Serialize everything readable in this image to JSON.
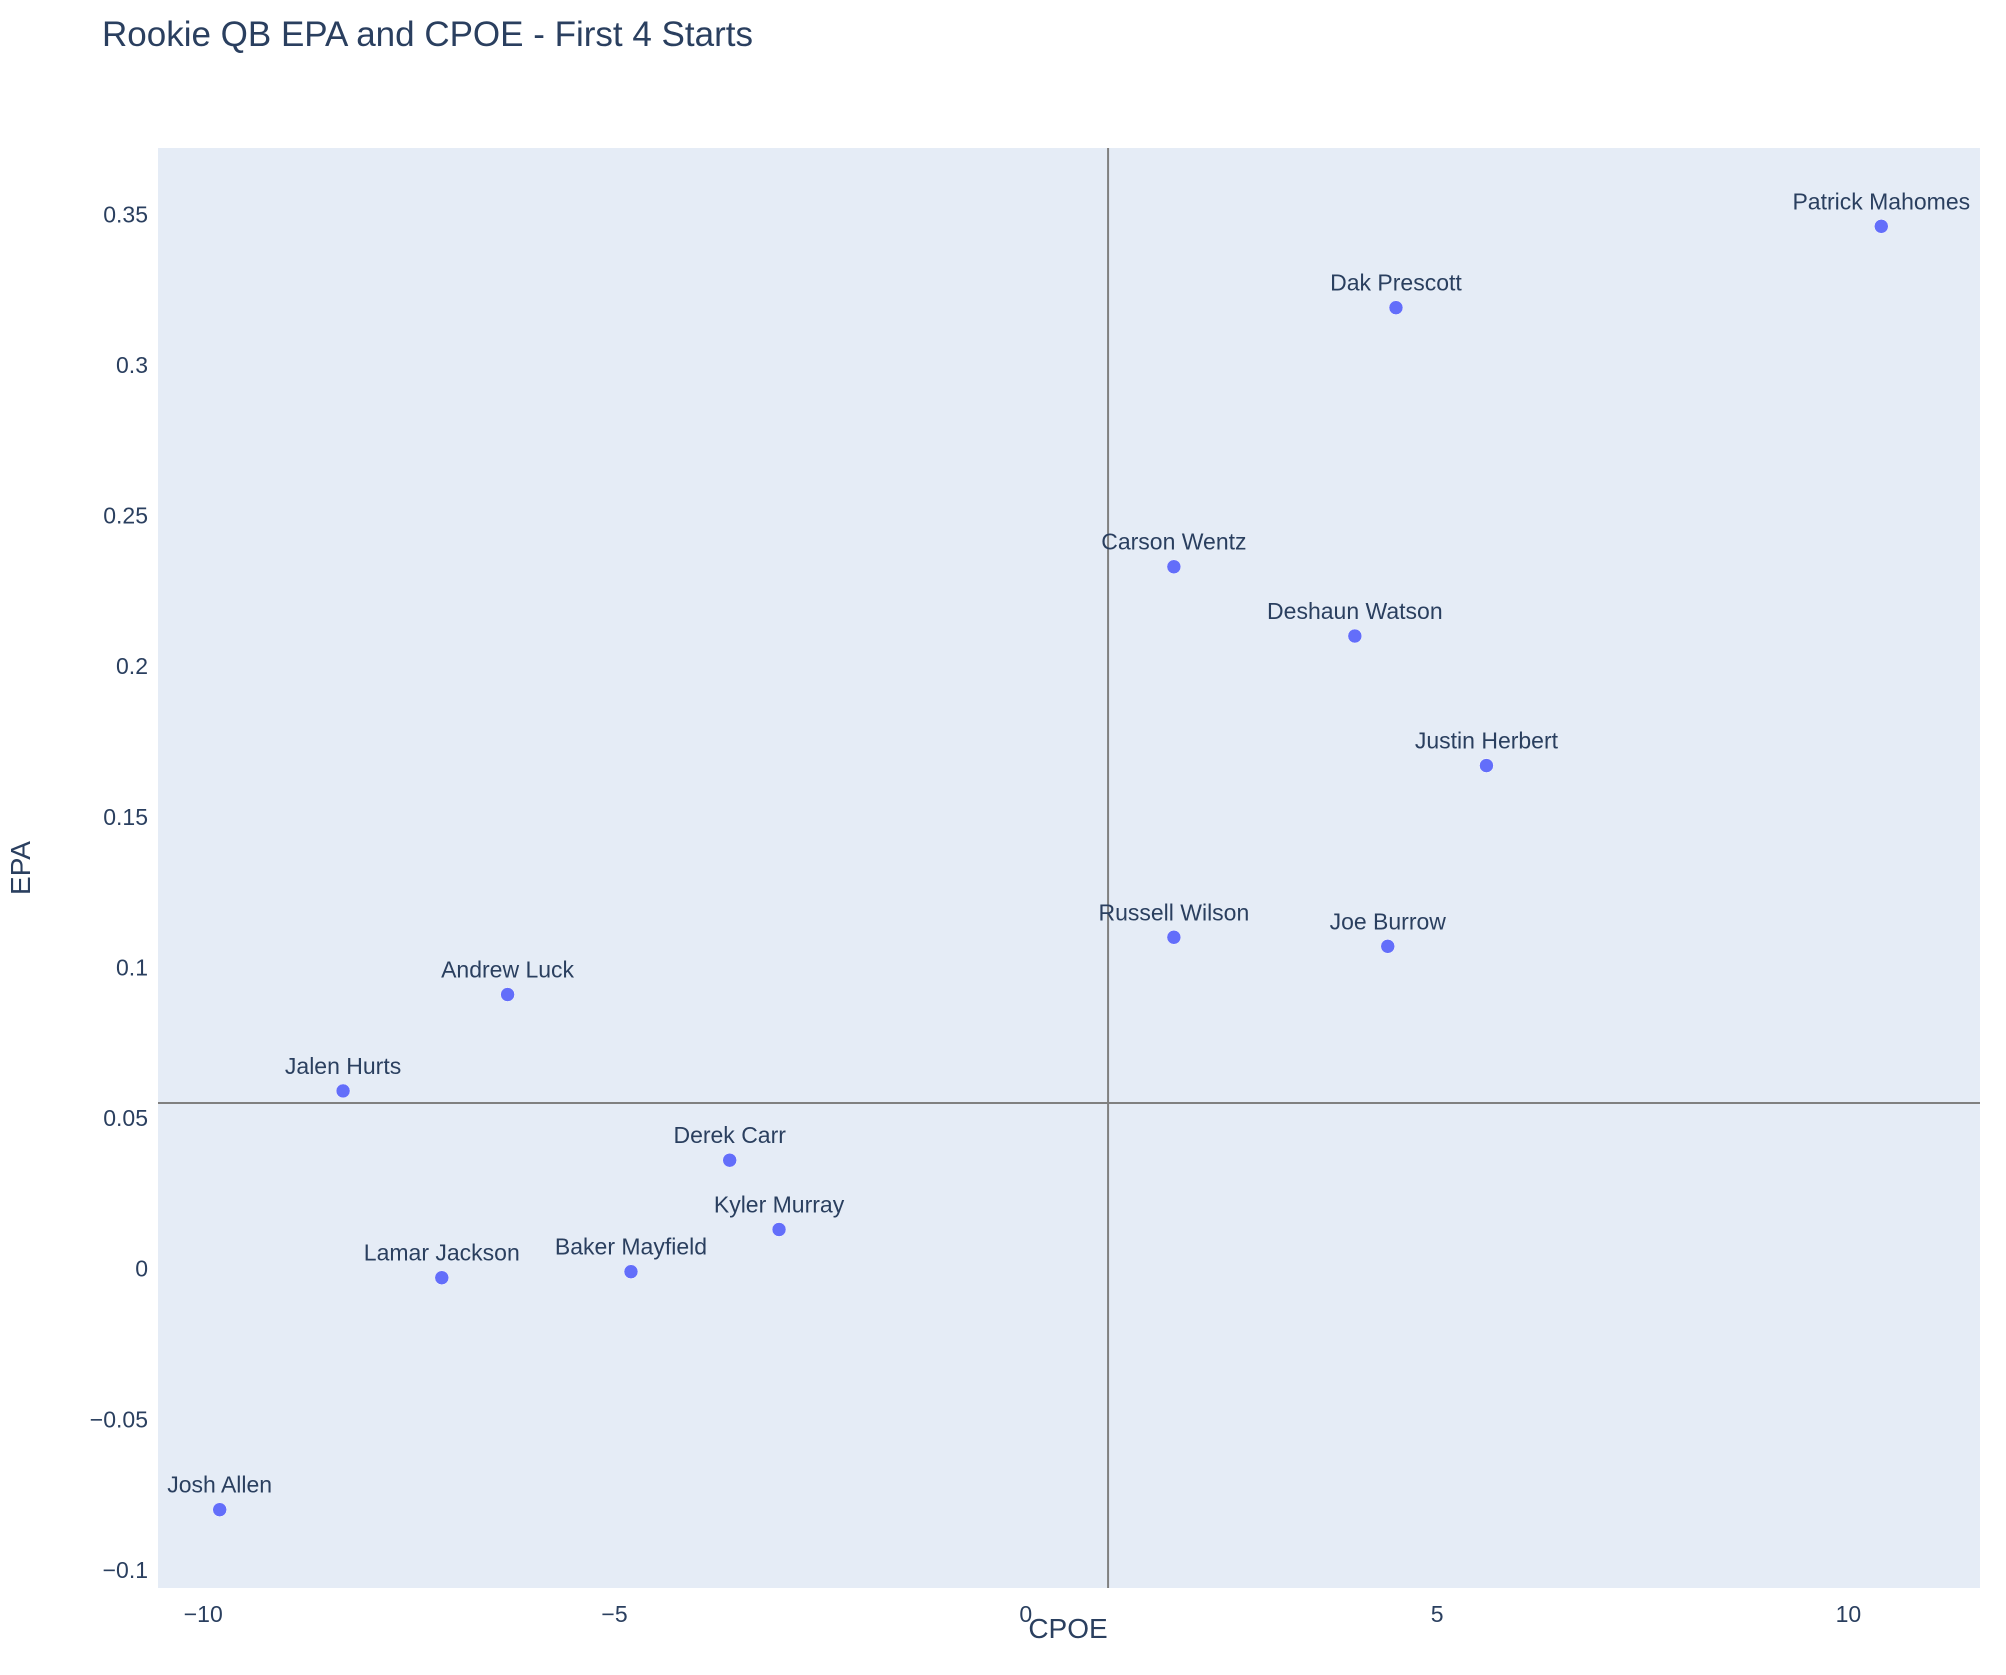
{
  "chart_data": {
    "type": "scatter",
    "title": "Rookie QB EPA and CPOE - First 4 Starts",
    "xlabel": "CPOE",
    "ylabel": "EPA",
    "xlim": [
      -10.55,
      11.6
    ],
    "ylim": [
      -0.106,
      0.372
    ],
    "x_ticks": [
      -10,
      -5,
      0,
      5,
      10
    ],
    "x_tick_labels": [
      "−10",
      "−5",
      "0",
      "5",
      "10"
    ],
    "y_ticks": [
      -0.1,
      -0.05,
      0,
      0.05,
      0.1,
      0.15,
      0.2,
      0.25,
      0.3,
      0.35
    ],
    "y_tick_labels": [
      "−0.1",
      "−0.05",
      "0",
      "0.05",
      "0.1",
      "0.15",
      "0.2",
      "0.25",
      "0.3",
      "0.35"
    ],
    "reference_lines": {
      "x": 1.0,
      "y": 0.055
    },
    "grid": false,
    "colors": {
      "plot_bg": "#e5ecf6",
      "marker": "#636efa",
      "reference_line": "#808080",
      "text": "#2a3f5f"
    },
    "points": [
      {
        "label": "Patrick Mahomes",
        "x": 10.4,
        "y": 0.346
      },
      {
        "label": "Dak Prescott",
        "x": 4.5,
        "y": 0.319
      },
      {
        "label": "Carson Wentz",
        "x": 1.8,
        "y": 0.233
      },
      {
        "label": "Deshaun Watson",
        "x": 4.0,
        "y": 0.21
      },
      {
        "label": "Justin Herbert",
        "x": 5.6,
        "y": 0.167
      },
      {
        "label": "Russell Wilson",
        "x": 1.8,
        "y": 0.11
      },
      {
        "label": "Joe Burrow",
        "x": 4.4,
        "y": 0.107
      },
      {
        "label": "Andrew Luck",
        "x": -6.3,
        "y": 0.091
      },
      {
        "label": "Jalen Hurts",
        "x": -8.3,
        "y": 0.059
      },
      {
        "label": "Derek Carr",
        "x": -3.6,
        "y": 0.036
      },
      {
        "label": "Kyler Murray",
        "x": -3.0,
        "y": 0.013
      },
      {
        "label": "Lamar Jackson",
        "x": -7.1,
        "y": -0.003
      },
      {
        "label": "Baker Mayfield",
        "x": -4.8,
        "y": -0.001
      },
      {
        "label": "Josh Allen",
        "x": -9.8,
        "y": -0.08
      }
    ]
  }
}
